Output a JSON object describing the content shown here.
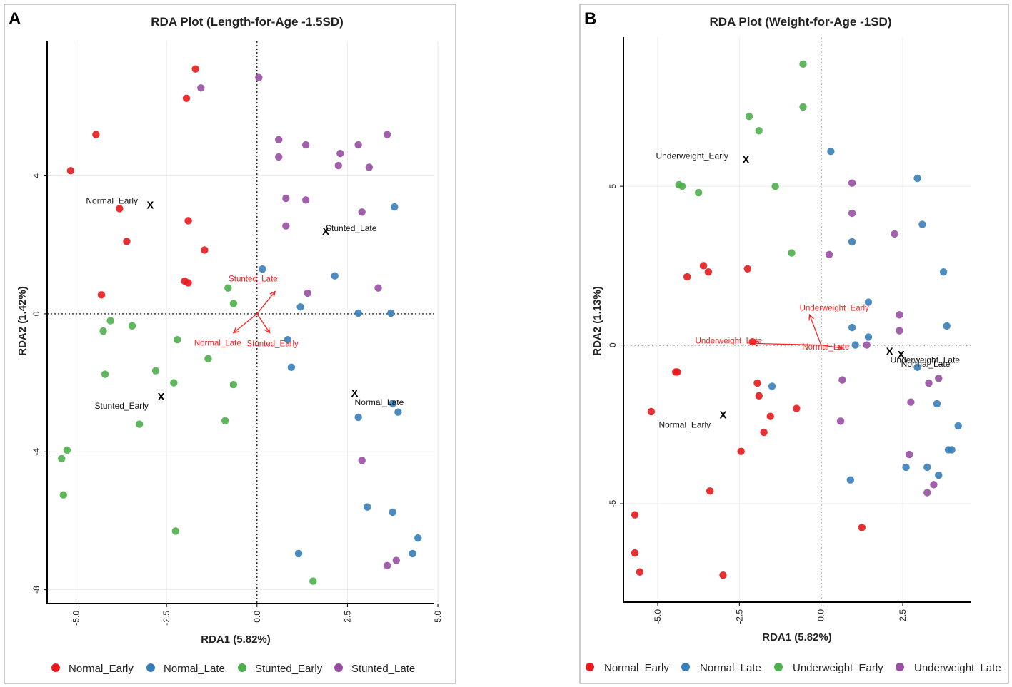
{
  "chart_data": [
    {
      "panel_letter": "A",
      "type": "scatter",
      "title": "RDA Plot (Length-for-Age -1.5SD)",
      "xlabel": "RDA1 (5.82%)",
      "ylabel": "RDA2 (1.42%)",
      "xlim": [
        -5.8,
        4.9
      ],
      "ylim": [
        -8.4,
        7.9
      ],
      "xticks": [
        -5.0,
        -2.5,
        0.0,
        2.5,
        5.0
      ],
      "xtick_labels": [
        "-5.0",
        "-2.5",
        "0.0",
        "2.5",
        "5.0"
      ],
      "yticks": [
        4,
        0,
        -4,
        -8
      ],
      "ytick_labels": [
        "4",
        "0",
        "-4",
        "-8"
      ],
      "series": [
        {
          "name": "Normal_Early",
          "color": "#e41a1c",
          "points": [
            [
              -1.7,
              7.1
            ],
            [
              -1.95,
              6.25
            ],
            [
              -4.45,
              5.2
            ],
            [
              -5.15,
              4.15
            ],
            [
              -3.8,
              3.05
            ],
            [
              -1.9,
              2.7
            ],
            [
              -3.6,
              2.1
            ],
            [
              -1.45,
              1.85
            ],
            [
              -2.0,
              0.95
            ],
            [
              -1.9,
              0.9
            ],
            [
              -4.3,
              0.55
            ]
          ]
        },
        {
          "name": "Normal_Late",
          "color": "#377eb8",
          "points": [
            [
              3.8,
              3.1
            ],
            [
              0.15,
              1.3
            ],
            [
              2.15,
              1.1
            ],
            [
              1.2,
              0.2
            ],
            [
              2.8,
              0.02
            ],
            [
              3.7,
              0.02
            ],
            [
              0.85,
              -0.75
            ],
            [
              0.95,
              -1.55
            ],
            [
              2.8,
              -3.0
            ],
            [
              3.75,
              -2.6
            ],
            [
              3.9,
              -2.85
            ],
            [
              3.05,
              -5.6
            ],
            [
              3.75,
              -5.75
            ],
            [
              1.15,
              -6.95
            ],
            [
              4.45,
              -6.5
            ],
            [
              4.3,
              -6.95
            ]
          ]
        },
        {
          "name": "Stunted_Early",
          "color": "#4daf4a",
          "points": [
            [
              -0.8,
              0.75
            ],
            [
              -0.65,
              0.3
            ],
            [
              -4.05,
              -0.2
            ],
            [
              -4.25,
              -0.5
            ],
            [
              -3.45,
              -0.35
            ],
            [
              -2.2,
              -0.75
            ],
            [
              -1.35,
              -1.3
            ],
            [
              -2.8,
              -1.65
            ],
            [
              -4.2,
              -1.75
            ],
            [
              -2.3,
              -2.0
            ],
            [
              -0.65,
              -2.05
            ],
            [
              -3.25,
              -3.2
            ],
            [
              -0.88,
              -3.1
            ],
            [
              -5.25,
              -3.95
            ],
            [
              -5.4,
              -4.2
            ],
            [
              -5.35,
              -5.25
            ],
            [
              -2.25,
              -6.3
            ],
            [
              1.55,
              -7.75
            ]
          ]
        },
        {
          "name": "Stunted_Late",
          "color": "#984ea3",
          "points": [
            [
              0.05,
              6.85
            ],
            [
              -1.55,
              6.55
            ],
            [
              0.6,
              5.05
            ],
            [
              1.35,
              4.9
            ],
            [
              2.8,
              4.9
            ],
            [
              3.6,
              5.2
            ],
            [
              0.6,
              4.55
            ],
            [
              2.3,
              4.65
            ],
            [
              2.25,
              4.3
            ],
            [
              3.1,
              4.25
            ],
            [
              0.8,
              3.35
            ],
            [
              1.35,
              3.3
            ],
            [
              2.9,
              2.95
            ],
            [
              0.8,
              2.55
            ],
            [
              1.4,
              0.6
            ],
            [
              3.35,
              0.75
            ],
            [
              2.9,
              -4.25
            ],
            [
              3.85,
              -7.15
            ],
            [
              3.6,
              -7.3
            ]
          ]
        }
      ],
      "centroids": [
        {
          "label": "Normal_Early",
          "x": -2.95,
          "y": 3.15
        },
        {
          "label": "Stunted_Late",
          "x": 1.9,
          "y": 2.4
        },
        {
          "label": "Stunted_Early",
          "x": -2.65,
          "y": -2.4
        },
        {
          "label": "Normal_Late",
          "x": 2.7,
          "y": -2.3
        }
      ],
      "arrows": [
        {
          "label": "Stunted_Late",
          "x": 0.5,
          "y": 0.65
        },
        {
          "label": "Normal_Late",
          "x": -0.65,
          "y": -0.55
        },
        {
          "label": "Stunted_Early",
          "x": 0.35,
          "y": -0.55
        }
      ]
    },
    {
      "panel_letter": "B",
      "type": "scatter",
      "title": "RDA Plot (Weight-for-Age -1SD)",
      "xlabel": "RDA1 (5.82%)",
      "ylabel": "RDA2 (1.13%)",
      "xlim": [
        -6.05,
        4.6
      ],
      "ylim": [
        -8.1,
        9.7
      ],
      "xticks": [
        -5.0,
        -2.5,
        0.0,
        2.5
      ],
      "xtick_labels": [
        "-5.0",
        "-2.5",
        "0.0",
        "2.5"
      ],
      "yticks": [
        5,
        0,
        -5
      ],
      "ytick_labels": [
        "5",
        "0",
        "-5"
      ],
      "series": [
        {
          "name": "Normal_Early",
          "color": "#e41a1c",
          "points": [
            [
              -3.6,
              2.5
            ],
            [
              -3.45,
              2.3
            ],
            [
              -4.1,
              2.15
            ],
            [
              -2.25,
              2.4
            ],
            [
              -2.1,
              0.1
            ],
            [
              -4.45,
              -0.85
            ],
            [
              -4.4,
              -0.85
            ],
            [
              -1.95,
              -1.2
            ],
            [
              -1.9,
              -1.6
            ],
            [
              -0.75,
              -2.0
            ],
            [
              -1.55,
              -2.25
            ],
            [
              -1.75,
              -2.75
            ],
            [
              -5.2,
              -2.1
            ],
            [
              -2.45,
              -3.35
            ],
            [
              -3.4,
              -4.6
            ],
            [
              -5.7,
              -5.35
            ],
            [
              -5.7,
              -6.55
            ],
            [
              -5.55,
              -7.15
            ],
            [
              -3.0,
              -7.25
            ],
            [
              1.25,
              -5.75
            ]
          ]
        },
        {
          "name": "Normal_Late",
          "color": "#377eb8",
          "points": [
            [
              0.3,
              6.1
            ],
            [
              2.95,
              5.25
            ],
            [
              3.1,
              3.8
            ],
            [
              0.95,
              3.25
            ],
            [
              3.75,
              2.3
            ],
            [
              1.45,
              1.35
            ],
            [
              0.95,
              0.55
            ],
            [
              1.45,
              0.25
            ],
            [
              1.05,
              0.0
            ],
            [
              3.85,
              0.6
            ],
            [
              2.95,
              -0.7
            ],
            [
              -1.5,
              -1.3
            ],
            [
              3.55,
              -1.85
            ],
            [
              0.9,
              -4.25
            ],
            [
              2.6,
              -3.85
            ],
            [
              3.25,
              -3.85
            ],
            [
              3.6,
              -4.1
            ],
            [
              3.9,
              -3.3
            ],
            [
              4.0,
              -3.3
            ],
            [
              4.2,
              -2.55
            ]
          ]
        },
        {
          "name": "Underweight_Early",
          "color": "#4daf4a",
          "points": [
            [
              -0.55,
              8.85
            ],
            [
              -0.55,
              7.5
            ],
            [
              -2.2,
              7.2
            ],
            [
              -1.9,
              6.75
            ],
            [
              -4.35,
              5.05
            ],
            [
              -4.25,
              5.0
            ],
            [
              -3.75,
              4.8
            ],
            [
              -1.4,
              5.0
            ],
            [
              -0.9,
              2.9
            ]
          ]
        },
        {
          "name": "Underweight_Late",
          "color": "#984ea3",
          "points": [
            [
              0.95,
              5.1
            ],
            [
              0.95,
              4.15
            ],
            [
              2.25,
              3.5
            ],
            [
              0.25,
              2.85
            ],
            [
              2.4,
              0.95
            ],
            [
              2.4,
              0.45
            ],
            [
              0.65,
              -1.1
            ],
            [
              1.4,
              0.0
            ],
            [
              3.6,
              -1.05
            ],
            [
              3.3,
              -1.2
            ],
            [
              2.75,
              -1.8
            ],
            [
              0.6,
              -2.4
            ],
            [
              2.7,
              -3.45
            ],
            [
              3.45,
              -4.4
            ],
            [
              3.25,
              -4.65
            ]
          ]
        }
      ],
      "centroids": [
        {
          "label": "Underweight_Early",
          "x": -2.3,
          "y": 5.85
        },
        {
          "label": "Normal_Early",
          "x": -3.0,
          "y": -2.2
        },
        {
          "label": "Underweight_Late",
          "x": 2.1,
          "y": -0.2
        },
        {
          "label": "Normal_Late",
          "x": 2.45,
          "y": -0.3
        }
      ],
      "arrows": [
        {
          "label": "Underweight_Early",
          "x": -0.35,
          "y": 0.95
        },
        {
          "label": "Underweight_Late",
          "x": -2.1,
          "y": 0.05
        },
        {
          "label": "Normal_Late",
          "x": 0.65,
          "y": -0.1
        }
      ]
    }
  ]
}
